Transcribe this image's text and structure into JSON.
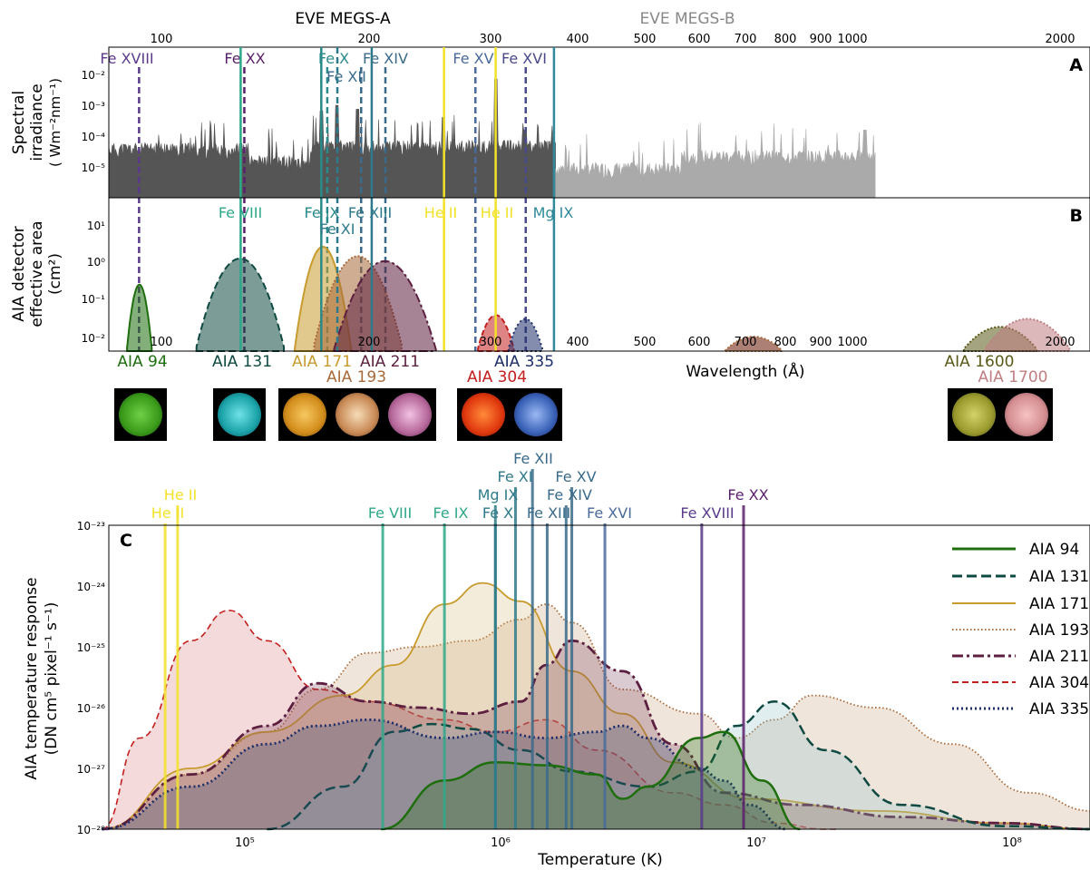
{
  "colors": {
    "aia94": "#1e6e0e",
    "aia131": "#0f4a42",
    "aia171": "#c89b2e",
    "aia193": "#a86a3a",
    "aia211": "#5c1f3f",
    "aia304": "#c41f1f",
    "aia335": "#1f2f6a",
    "aia1600": "#5a5a18",
    "aia1700": "#c07e82",
    "he": "#f2e22a",
    "megsA": "#555555",
    "megsB": "#aaaaaa"
  },
  "panel_a": {
    "tag": "A",
    "megs_a_label": "EVE MEGS-A",
    "megs_b_label": "EVE MEGS-B",
    "ylabel_line1": "Spectral",
    "ylabel_line2": "irradiance",
    "ylabel_line3": "( Wm⁻²nm⁻¹)",
    "yticks": [
      "10⁻²",
      "10⁻³",
      "10⁻⁴",
      "10⁻⁵"
    ],
    "xticks": [
      "100",
      "200",
      "300",
      "400",
      "500",
      "600",
      "700",
      "800",
      "900",
      "1000",
      "2000"
    ]
  },
  "panel_b": {
    "tag": "B",
    "ylabel_line1": "AIA detector",
    "ylabel_line2": "effective area",
    "ylabel_line3": "(cm²)",
    "yticks": [
      "10¹",
      "10⁰",
      "10⁻¹",
      "10⁻²"
    ],
    "xticks": [
      "100",
      "200",
      "300",
      "400",
      "500",
      "600",
      "700",
      "800",
      "900",
      "1000",
      "2000"
    ],
    "xlabel": "Wavelength (Å)",
    "channel_labels": [
      "AIA 94",
      "AIA 131",
      "AIA 171",
      "AIA 193",
      "AIA 211",
      "AIA 304",
      "AIA 335",
      "AIA 1600",
      "AIA 1700"
    ]
  },
  "panel_c": {
    "tag": "C",
    "ylabel_line1": "AIA temperature response",
    "ylabel_line2": "(DN cm⁵ pixel⁻¹ s⁻¹)",
    "xlabel": "Temperature (K)",
    "yticks": [
      "10⁻²³",
      "10⁻²⁴",
      "10⁻²⁵",
      "10⁻²⁶",
      "10⁻²⁷",
      "10⁻²⁸"
    ],
    "xticks": [
      "10⁵",
      "10⁶",
      "10⁷",
      "10⁸"
    ],
    "legend": [
      "AIA 94",
      "AIA 131",
      "AIA 171",
      "AIA 193",
      "AIA 211",
      "AIA 304",
      "AIA 335"
    ]
  },
  "chart_data": [
    {
      "type": "area",
      "panel": "A",
      "xlabel": "",
      "ylabel": "Spectral irradiance ( Wm⁻²nm⁻¹)",
      "x_scale": "log",
      "xlim": [
        85,
        2150
      ],
      "y_scale": "log",
      "ylim": [
        1.5e-06,
        0.08
      ],
      "series": [
        {
          "name": "EVE MEGS-A",
          "x_range": [
            85,
            370
          ]
        },
        {
          "name": "EVE MEGS-B",
          "x_range": [
            370,
            1060
          ]
        }
      ],
      "spectrum_peaks": [
        {
          "x": 171,
          "y": 0.0008
        },
        {
          "x": 180,
          "y": 0.0012
        },
        {
          "x": 193,
          "y": 0.0009
        },
        {
          "x": 256,
          "y": 0.0005
        },
        {
          "x": 304,
          "y": 0.008
        },
        {
          "x": 335,
          "y": 0.0002
        },
        {
          "x": 1025,
          "y": 0.0002
        }
      ],
      "lines": [
        {
          "label": "Fe XVIII",
          "x": 93.9,
          "style": "dashed"
        },
        {
          "label": "Fe XX",
          "x": 132.8,
          "style": "dashed"
        },
        {
          "label": "Fe X",
          "x": 174.5,
          "style": "dashed"
        },
        {
          "label": "Fe XII",
          "x": 195.1,
          "style": "dashed"
        },
        {
          "label": "Fe XIV",
          "x": 211.3,
          "style": "dashed"
        },
        {
          "label": "Fe XV",
          "x": 284.2,
          "style": "dashed"
        },
        {
          "label": "Fe XVI",
          "x": 335.4,
          "style": "dashed"
        }
      ]
    },
    {
      "type": "area",
      "panel": "B",
      "xlabel": "Wavelength (Å)",
      "ylabel": "AIA detector effective area (cm²)",
      "x_scale": "log",
      "xlim": [
        85,
        2150
      ],
      "y_scale": "log",
      "ylim": [
        0.006,
        50
      ],
      "series": [
        {
          "name": "AIA 94",
          "peak_x": 94,
          "peak_y": 0.3,
          "width": 0.01
        },
        {
          "name": "AIA 131",
          "peak_x": 131,
          "peak_y": 1.4,
          "width": 0.03
        },
        {
          "name": "AIA 171",
          "peak_x": 172,
          "peak_y": 2.8,
          "width": 0.018
        },
        {
          "name": "AIA 193",
          "peak_x": 193,
          "peak_y": 1.6,
          "width": 0.03
        },
        {
          "name": "AIA 211",
          "peak_x": 211,
          "peak_y": 1.2,
          "width": 0.035
        },
        {
          "name": "AIA 304",
          "peak_x": 304,
          "peak_y": 0.05,
          "width": 0.02
        },
        {
          "name": "AIA 335",
          "peak_x": 335,
          "peak_y": 0.04,
          "width": 0.02
        },
        {
          "name": "AIA 1600",
          "peak_x": 1600,
          "peak_y": 0.025,
          "width": 0.05
        },
        {
          "name": "AIA 1700",
          "peak_x": 1750,
          "peak_y": 0.04,
          "width": 0.05
        }
      ],
      "lines": [
        {
          "label": "Fe VIII",
          "x": 131.2,
          "style": "solid"
        },
        {
          "label": "Fe IX",
          "x": 171.1,
          "style": "solid"
        },
        {
          "label": "Fe XI",
          "x": 180.4,
          "style": "dashed"
        },
        {
          "label": "Fe XIII",
          "x": 202.0,
          "style": "solid"
        },
        {
          "label": "He II",
          "x": 256.3,
          "style": "solid"
        },
        {
          "label": "He II",
          "x": 303.8,
          "style": "solid"
        },
        {
          "label": "Mg IX",
          "x": 368.1,
          "style": "solid"
        }
      ]
    },
    {
      "type": "area",
      "panel": "C",
      "xlabel": "Temperature (K)",
      "ylabel": "AIA temperature response (DN cm⁵ pixel⁻¹ s⁻¹)",
      "x_scale": "log",
      "xlim": [
        30000,
        220000000
      ],
      "y_scale": "log",
      "ylim": [
        1e-28,
        1e-23
      ],
      "legend_position": "top-right",
      "series": [
        {
          "name": "AIA 94",
          "style": "solid",
          "logT": [
            5.55,
            5.8,
            6.0,
            6.2,
            6.4,
            6.5,
            6.6,
            6.8,
            6.9,
            7.05,
            7.2
          ],
          "logR": [
            -28,
            -27.2,
            -26.9,
            -26.95,
            -27.1,
            -27.5,
            -27.3,
            -26.5,
            -26.4,
            -27.2,
            -28
          ]
        },
        {
          "name": "AIA 131",
          "style": "dashed",
          "logT": [
            5.1,
            5.4,
            5.6,
            5.75,
            5.9,
            6.1,
            6.3,
            6.6,
            6.8,
            6.95,
            7.1,
            7.3,
            7.6,
            8.0,
            8.35
          ],
          "logR": [
            -28,
            -27.3,
            -26.4,
            -26.27,
            -26.35,
            -26.7,
            -27.05,
            -27.3,
            -27.05,
            -26.3,
            -25.9,
            -26.7,
            -27.6,
            -27.95,
            -28.05
          ]
        },
        {
          "name": "AIA 171",
          "style": "solid",
          "logT": [
            4.45,
            4.8,
            5.1,
            5.4,
            5.6,
            5.8,
            5.95,
            6.1,
            6.3,
            6.5,
            6.7,
            7.0,
            7.5,
            8.0,
            8.35
          ],
          "logR": [
            -28,
            -27.0,
            -26.4,
            -25.8,
            -25.3,
            -24.3,
            -23.95,
            -24.25,
            -25.4,
            -26.1,
            -26.9,
            -27.5,
            -27.7,
            -27.9,
            -28.0
          ]
        },
        {
          "name": "AIA 193",
          "style": "dotted",
          "logT": [
            4.45,
            4.8,
            5.1,
            5.3,
            5.5,
            5.7,
            5.9,
            6.1,
            6.2,
            6.3,
            6.5,
            6.8,
            6.95,
            7.1,
            7.25,
            7.5,
            7.8,
            8.1,
            8.35
          ],
          "logR": [
            -28,
            -27.1,
            -26.4,
            -25.7,
            -25.1,
            -25.0,
            -24.9,
            -24.55,
            -24.3,
            -24.6,
            -25.7,
            -26.1,
            -26.5,
            -26.2,
            -25.8,
            -26.0,
            -26.6,
            -27.4,
            -27.7
          ]
        },
        {
          "name": "AIA 211",
          "style": "dashdot",
          "logT": [
            4.45,
            4.8,
            5.1,
            5.3,
            5.5,
            5.7,
            5.9,
            6.1,
            6.2,
            6.3,
            6.5,
            6.7,
            6.9,
            7.2,
            7.6,
            8.0,
            8.35
          ],
          "logR": [
            -28,
            -27.1,
            -26.3,
            -25.6,
            -25.9,
            -26.0,
            -26.1,
            -25.9,
            -25.3,
            -24.9,
            -25.4,
            -26.6,
            -27.4,
            -27.6,
            -27.8,
            -27.9,
            -28.0
          ]
        },
        {
          "name": "AIA 304",
          "style": "dashed",
          "logT": [
            4.45,
            4.6,
            4.8,
            4.95,
            5.1,
            5.3,
            5.5,
            5.8,
            6.0,
            6.2,
            6.4,
            6.7,
            6.9,
            7.1,
            7.3,
            7.35
          ],
          "logR": [
            -28,
            -26.5,
            -24.9,
            -24.4,
            -24.9,
            -25.7,
            -25.9,
            -26.2,
            -26.4,
            -26.2,
            -26.7,
            -27.4,
            -27.6,
            -27.9,
            -28.0,
            -28.0
          ]
        },
        {
          "name": "AIA 335",
          "style": "dotted",
          "logT": [
            4.45,
            4.8,
            5.1,
            5.3,
            5.5,
            5.8,
            6.0,
            6.2,
            6.4,
            6.5,
            6.6,
            6.8,
            6.9,
            7.0,
            7.15
          ],
          "logR": [
            -28,
            -27.3,
            -26.6,
            -26.3,
            -26.2,
            -26.5,
            -26.4,
            -26.5,
            -26.4,
            -26.3,
            -26.5,
            -27.0,
            -27.2,
            -27.6,
            -28.0
          ]
        }
      ],
      "lines": [
        {
          "label": "He II",
          "x": 50000
        },
        {
          "label": "He II",
          "x": 56000
        },
        {
          "label": "Fe VIII",
          "x": 360000
        },
        {
          "label": "Fe IX",
          "x": 630000
        },
        {
          "label": "Mg IX",
          "x": 1000000
        },
        {
          "label": "Fe X",
          "x": 1000000
        },
        {
          "label": "Fe XI",
          "x": 1200000
        },
        {
          "label": "Fe XII",
          "x": 1400000
        },
        {
          "label": "Fe XIII",
          "x": 1600000
        },
        {
          "label": "Fe XIV",
          "x": 1900000
        },
        {
          "label": "Fe XV",
          "x": 2000000
        },
        {
          "label": "Fe XVI",
          "x": 2700000
        },
        {
          "label": "Fe XVIII",
          "x": 6500000
        },
        {
          "label": "Fe XX",
          "x": 9500000
        }
      ]
    }
  ]
}
